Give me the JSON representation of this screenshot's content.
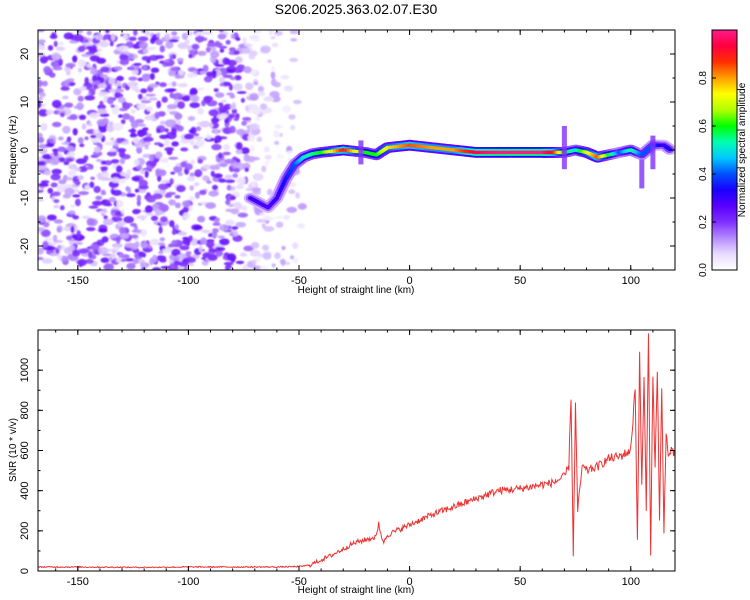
{
  "title": "S206.2025.363.02.07.E30",
  "chart_data": [
    {
      "type": "heatmap",
      "xlabel": "Height of straight line (km)",
      "ylabel": "Frequency (Hz)",
      "xlim": [
        -168,
        120
      ],
      "ylim": [
        -25,
        25
      ],
      "x_ticks": [
        -150,
        -100,
        -50,
        0,
        50,
        100
      ],
      "y_ticks": [
        -20,
        -10,
        0,
        10,
        20
      ],
      "colorbar": {
        "label": "Normalized spectral amplitude",
        "range": [
          0,
          1
        ],
        "ticks": [
          "0.0",
          "0.2",
          "0.4",
          "0.6",
          "0.8"
        ],
        "stops": [
          "#ffffff",
          "#e9dcff",
          "#b48aff",
          "#7f2fff",
          "#5a00ff",
          "#1a00ff",
          "#0050ff",
          "#00c8ff",
          "#00ffb0",
          "#00ff00",
          "#b0ff00",
          "#ffff00",
          "#ffa000",
          "#ff3000",
          "#ff0040",
          "#ff1a8c"
        ]
      },
      "noise_region": {
        "x_from": -168,
        "x_to": -48,
        "amplitude_range": [
          0.05,
          0.25
        ]
      },
      "ridge": {
        "x": [
          -72,
          -68,
          -64,
          -60,
          -56,
          -52,
          -48,
          -44,
          -40,
          -30,
          -20,
          -15,
          -10,
          0,
          10,
          20,
          30,
          40,
          50,
          60,
          65,
          70,
          75,
          80,
          85,
          90,
          95,
          100,
          105,
          110,
          115,
          118
        ],
        "freq": [
          -10,
          -11,
          -12,
          -10,
          -6,
          -3,
          -1.5,
          -0.8,
          -0.5,
          0,
          -0.5,
          -1,
          0.5,
          1,
          0.5,
          0,
          -0.5,
          -0.5,
          -0.5,
          -0.5,
          -0.5,
          -0.5,
          0,
          -0.5,
          -1.5,
          -1,
          -0.5,
          0,
          -1,
          1,
          1,
          0
        ],
        "amp": [
          0.3,
          0.3,
          0.28,
          0.3,
          0.35,
          0.4,
          0.5,
          0.55,
          0.6,
          0.9,
          0.6,
          0.6,
          0.75,
          0.85,
          0.8,
          0.8,
          0.95,
          1.0,
          1.0,
          1.0,
          0.9,
          0.6,
          0.5,
          0.7,
          0.85,
          0.6,
          0.4,
          0.55,
          0.4,
          0.4,
          0.3,
          0.35
        ]
      }
    },
    {
      "type": "line",
      "xlabel": "Height of straight line (km)",
      "ylabel": "SNR (10 * v/v)",
      "xlim": [
        -168,
        120
      ],
      "ylim": [
        0,
        1200
      ],
      "x_ticks": [
        -150,
        -100,
        -50,
        0,
        50,
        100
      ],
      "y_ticks": [
        0,
        200,
        400,
        600,
        800,
        1000
      ],
      "color": "#ee3333",
      "series": [
        {
          "x": [
            -168,
            -150,
            -120,
            -100,
            -80,
            -60,
            -50,
            -45,
            -40,
            -35,
            -30,
            -25,
            -20,
            -15,
            -14,
            -12,
            -10,
            0,
            10,
            20,
            30,
            40,
            50,
            60,
            65,
            70,
            72,
            73,
            74,
            75,
            76,
            78,
            80,
            85,
            90,
            95,
            100,
            102,
            103,
            104,
            105,
            106,
            107,
            108,
            109,
            110,
            111,
            112,
            113,
            114,
            115,
            116,
            117,
            118,
            120
          ],
          "y": [
            20,
            20,
            18,
            20,
            20,
            20,
            22,
            30,
            55,
            80,
            110,
            140,
            155,
            170,
            240,
            140,
            180,
            230,
            280,
            320,
            360,
            400,
            410,
            430,
            440,
            470,
            520,
            880,
            80,
            820,
            300,
            520,
            500,
            520,
            560,
            570,
            600,
            920,
            150,
            1060,
            420,
            980,
            300,
            1180,
            70,
            1000,
            500,
            1020,
            250,
            900,
            200,
            700,
            560,
            600,
            570
          ]
        }
      ]
    }
  ]
}
